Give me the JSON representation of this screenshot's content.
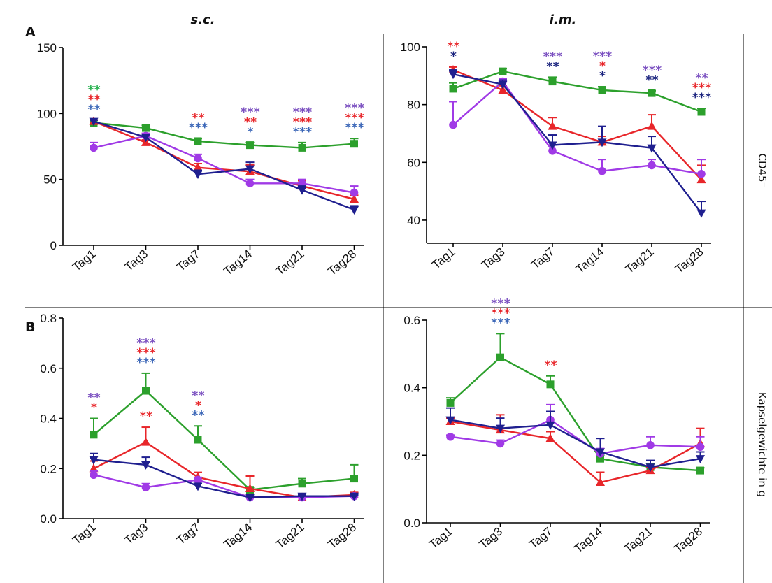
{
  "column_titles": [
    "s.c.",
    "i.m."
  ],
  "row_letters": [
    "A",
    "B"
  ],
  "row_labels": [
    "CD45⁺",
    "Kapselgewichte in g"
  ],
  "colors": {
    "green": "#2ca02c",
    "red": "#e8262a",
    "purple": "#a03ae6",
    "navy": "#1f1f8f",
    "star_green": "#22b04b",
    "star_red": "#e8262a",
    "star_blue": "#3d68b8",
    "star_purple": "#7a4fc0",
    "star_navy": "#1a237e"
  },
  "chart_data": [
    {
      "id": "A-sc",
      "type": "line",
      "categories": [
        "Tag1",
        "Tag3",
        "Tag7",
        "Tag14",
        "Tag21",
        "Tag28"
      ],
      "ylim": [
        0,
        150
      ],
      "yticks": [
        0,
        50,
        100,
        150
      ],
      "ytick_labels": [
        "0",
        "50",
        "100",
        "150"
      ],
      "series": [
        {
          "color": "green",
          "marker": "square",
          "values": [
            93,
            89,
            79,
            76,
            74,
            77
          ],
          "err": [
            2,
            2,
            2,
            2,
            4,
            4
          ]
        },
        {
          "color": "red",
          "marker": "triangle-up",
          "values": [
            94,
            78,
            59,
            56,
            45,
            35
          ],
          "err": [
            1,
            2,
            3,
            5,
            4,
            3
          ]
        },
        {
          "color": "purple",
          "marker": "circle",
          "values": [
            74,
            83,
            66,
            47,
            47,
            40
          ],
          "err": [
            4,
            2,
            3,
            3,
            3,
            5
          ]
        },
        {
          "color": "navy",
          "marker": "triangle-down",
          "values": [
            94,
            82,
            54,
            58,
            42,
            27
          ],
          "err": [
            1,
            2,
            3,
            5,
            3,
            3
          ]
        }
      ],
      "annotations": [
        {
          "category": "Tag1",
          "rows": [
            [
              "**",
              "star_green"
            ],
            [
              "**",
              "star_red"
            ],
            [
              "**",
              "star_blue"
            ]
          ]
        },
        {
          "category": "Tag7",
          "rows": [
            [
              "**",
              "star_red"
            ],
            [
              "***",
              "star_blue"
            ]
          ]
        },
        {
          "category": "Tag14",
          "rows": [
            [
              "***",
              "star_purple"
            ],
            [
              "**",
              "star_red"
            ],
            [
              "*",
              "star_blue"
            ]
          ]
        },
        {
          "category": "Tag21",
          "rows": [
            [
              "***",
              "star_purple"
            ],
            [
              "***",
              "star_red"
            ],
            [
              "***",
              "star_blue"
            ]
          ]
        },
        {
          "category": "Tag28",
          "rows": [
            [
              "***",
              "star_purple"
            ],
            [
              "***",
              "star_red"
            ],
            [
              "***",
              "star_blue"
            ]
          ]
        }
      ]
    },
    {
      "id": "A-im",
      "type": "line",
      "categories": [
        "Tag1",
        "Tag3",
        "Tag7",
        "Tag14",
        "Tag21",
        "Tag28"
      ],
      "ylim": [
        32,
        100
      ],
      "yticks": [
        40,
        60,
        80,
        100
      ],
      "ytick_labels": [
        "40",
        "60",
        "80",
        "100"
      ],
      "series": [
        {
          "color": "green",
          "marker": "square",
          "values": [
            85.5,
            91.5,
            88,
            85,
            84,
            77.5
          ],
          "err": [
            2,
            1,
            1.5,
            1.2,
            0.8,
            1.2
          ]
        },
        {
          "color": "red",
          "marker": "triangle-up",
          "values": [
            92,
            85,
            72.5,
            67,
            72.5,
            54
          ],
          "err": [
            1,
            1.5,
            3,
            2,
            4,
            5
          ]
        },
        {
          "color": "purple",
          "marker": "circle",
          "values": [
            73,
            88,
            64,
            57,
            59,
            56
          ],
          "err": [
            8,
            1,
            2,
            4,
            2,
            5
          ]
        },
        {
          "color": "navy",
          "marker": "triangle-down",
          "values": [
            90.5,
            87,
            66,
            67,
            65,
            42.5
          ],
          "err": [
            1.5,
            1.5,
            3.5,
            5.5,
            4,
            4
          ]
        }
      ],
      "annotations": [
        {
          "category": "Tag1",
          "rows": [
            [
              "**",
              "star_red"
            ],
            [
              "*",
              "star_navy"
            ]
          ]
        },
        {
          "category": "Tag7",
          "rows": [
            [
              "***",
              "star_purple"
            ],
            [
              "**",
              "star_navy"
            ]
          ]
        },
        {
          "category": "Tag14",
          "rows": [
            [
              "***",
              "star_purple"
            ],
            [
              "*",
              "star_red"
            ],
            [
              "*",
              "star_navy"
            ]
          ]
        },
        {
          "category": "Tag21",
          "rows": [
            [
              "***",
              "star_purple"
            ],
            [
              "**",
              "star_navy"
            ]
          ]
        },
        {
          "category": "Tag28",
          "rows": [
            [
              "**",
              "star_purple"
            ],
            [
              "***",
              "star_red"
            ],
            [
              "***",
              "star_navy"
            ]
          ]
        }
      ]
    },
    {
      "id": "B-sc",
      "type": "line",
      "categories": [
        "Tag1",
        "Tag3",
        "Tag7",
        "Tag14",
        "Tag21",
        "Tag28"
      ],
      "ylim": [
        0,
        0.8
      ],
      "yticks": [
        0,
        0.2,
        0.4,
        0.6,
        0.8
      ],
      "ytick_labels": [
        "0.0",
        "0.2",
        "0.4",
        "0.6",
        "0.8"
      ],
      "series": [
        {
          "color": "green",
          "marker": "square",
          "values": [
            0.335,
            0.51,
            0.315,
            0.115,
            0.14,
            0.16
          ],
          "err": [
            0.065,
            0.07,
            0.055,
            0.01,
            0.02,
            0.055
          ]
        },
        {
          "color": "red",
          "marker": "triangle-up",
          "values": [
            0.2,
            0.305,
            0.165,
            0.12,
            0.085,
            0.095
          ],
          "err": [
            0.03,
            0.06,
            0.02,
            0.05,
            0.01,
            0.01
          ]
        },
        {
          "color": "purple",
          "marker": "circle",
          "values": [
            0.175,
            0.125,
            0.155,
            0.085,
            0.085,
            0.09
          ],
          "err": [
            0.015,
            0.015,
            0.01,
            0.005,
            0.005,
            0.005
          ]
        },
        {
          "color": "navy",
          "marker": "triangle-down",
          "values": [
            0.235,
            0.215,
            0.13,
            0.085,
            0.09,
            0.09
          ],
          "err": [
            0.025,
            0.03,
            0.01,
            0.005,
            0.005,
            0.005
          ]
        }
      ],
      "annotations": [
        {
          "category": "Tag1",
          "rows": [
            [
              "**",
              "star_purple"
            ],
            [
              "*",
              "star_red"
            ]
          ]
        },
        {
          "category": "Tag3",
          "rows": [
            [
              "***",
              "star_purple"
            ],
            [
              "***",
              "star_red"
            ],
            [
              "***",
              "star_blue"
            ]
          ]
        },
        {
          "category": "Tag3",
          "anchor": "mid",
          "rows": [
            [
              "**",
              "star_red"
            ]
          ]
        },
        {
          "category": "Tag7",
          "rows": [
            [
              "**",
              "star_purple"
            ],
            [
              "*",
              "star_red"
            ],
            [
              "**",
              "star_blue"
            ]
          ]
        }
      ]
    },
    {
      "id": "B-im",
      "type": "line",
      "categories": [
        "Tag1",
        "Tag3",
        "Tag7",
        "Tag14",
        "Tag21",
        "Tag28"
      ],
      "ylim": [
        0,
        0.6
      ],
      "yticks": [
        0,
        0.2,
        0.4,
        0.6
      ],
      "ytick_labels": [
        "0.0",
        "0.2",
        "0.4",
        "0.6"
      ],
      "series": [
        {
          "color": "green",
          "marker": "square",
          "values": [
            0.355,
            0.49,
            0.41,
            0.19,
            0.165,
            0.155
          ],
          "err": [
            0.015,
            0.07,
            0.025,
            0.01,
            0.01,
            0.008
          ]
        },
        {
          "color": "red",
          "marker": "triangle-up",
          "values": [
            0.3,
            0.275,
            0.25,
            0.12,
            0.155,
            0.235
          ],
          "err": [
            0.01,
            0.045,
            0.02,
            0.03,
            0.01,
            0.045
          ]
        },
        {
          "color": "purple",
          "marker": "circle",
          "values": [
            0.255,
            0.235,
            0.305,
            0.205,
            0.23,
            0.225
          ],
          "err": [
            0.005,
            0.01,
            0.045,
            0.015,
            0.025,
            0.03
          ]
        },
        {
          "color": "navy",
          "marker": "triangle-down",
          "values": [
            0.305,
            0.28,
            0.29,
            0.21,
            0.165,
            0.19
          ],
          "err": [
            0.035,
            0.03,
            0.04,
            0.04,
            0.02,
            0.02
          ]
        }
      ],
      "annotations": [
        {
          "category": "Tag3",
          "rows": [
            [
              "***",
              "star_purple"
            ],
            [
              "***",
              "star_red"
            ],
            [
              "***",
              "star_blue"
            ]
          ]
        },
        {
          "category": "Tag7",
          "rows": [
            [
              "**",
              "star_red"
            ]
          ]
        }
      ]
    }
  ]
}
